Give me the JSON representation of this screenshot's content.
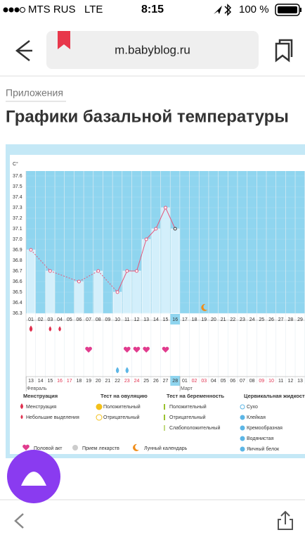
{
  "status_bar": {
    "carrier": "MTS RUS",
    "network": "LTE",
    "time": "8:15",
    "battery": "100 %"
  },
  "url": "m.babyblog.ru",
  "breadcrumb": "Приложения",
  "title": "Графики базальной температуры",
  "chart": {
    "type": "line",
    "y_label": "C°",
    "ylim": [
      36.3,
      37.6
    ],
    "yticks": [
      36.3,
      36.4,
      36.5,
      36.6,
      36.7,
      36.8,
      36.9,
      {
        "value": 37.0,
        "label": "37.0"
      },
      37.1,
      37.2,
      37.3,
      37.4,
      37.5,
      37.6
    ],
    "days": [
      "01",
      "02",
      "03",
      "04",
      "05",
      "06",
      "07",
      "08",
      "09",
      "10",
      "11",
      "12",
      "13",
      "14",
      "15",
      "16",
      "17",
      "18",
      "19",
      "20",
      "21",
      "22",
      "23",
      "24",
      "25",
      "26",
      "27",
      "28",
      "29"
    ],
    "values": [
      36.9,
      null,
      36.7,
      null,
      null,
      36.6,
      null,
      36.7,
      null,
      36.5,
      36.7,
      36.7,
      37.0,
      37.1,
      37.3,
      37.1,
      null,
      null,
      null,
      null,
      null,
      null,
      null,
      null,
      null,
      null,
      null,
      null,
      null
    ],
    "dates": [
      "13",
      "14",
      "15",
      "16",
      "17",
      "18",
      "19",
      "20",
      "21",
      "22",
      "23",
      "24",
      "25",
      "26",
      "27",
      "28",
      "01",
      "02",
      "03",
      "04",
      "05",
      "06",
      "07",
      "08",
      "09",
      "10",
      "11",
      "12",
      "13"
    ],
    "weekend": [
      false,
      false,
      false,
      true,
      true,
      false,
      false,
      false,
      false,
      false,
      true,
      true,
      false,
      false,
      false,
      false,
      false,
      true,
      true,
      false,
      false,
      false,
      false,
      false,
      true,
      true,
      false,
      false,
      false
    ],
    "months": [
      {
        "label": "Февраль",
        "at": "13"
      },
      {
        "label": "Март",
        "at": "01"
      }
    ],
    "current_day": "16",
    "current_date": "28",
    "line_color": "#e4587c",
    "bar_color": "#d3effb",
    "plot_color": "#8fd5ef",
    "menstruation": [
      "01",
      "03",
      "04"
    ],
    "intercourse": [
      "07",
      "11",
      "12",
      "13",
      "15"
    ],
    "cervical": [
      "10",
      "11"
    ],
    "moon": [
      "19"
    ],
    "legend": [
      {
        "title": "Менструация",
        "items": [
          "Менструация",
          "Небольшие выделения"
        ]
      },
      {
        "title": "Тест на овуляцию",
        "items": [
          "Положительный",
          "Отрицательный"
        ]
      },
      {
        "title": "Тест на беременность",
        "items": [
          "Положительный",
          "Отрицательный",
          "Слабоположительный"
        ]
      },
      {
        "title": "Цервикальная жидкость",
        "items": [
          "Сухо",
          "Клейкая",
          "Кремообразная",
          "Водянистая",
          "Яичный белок"
        ]
      }
    ],
    "legend_bottom": [
      "Половой акт",
      "Прием лекарств",
      "Лунный календарь"
    ]
  }
}
